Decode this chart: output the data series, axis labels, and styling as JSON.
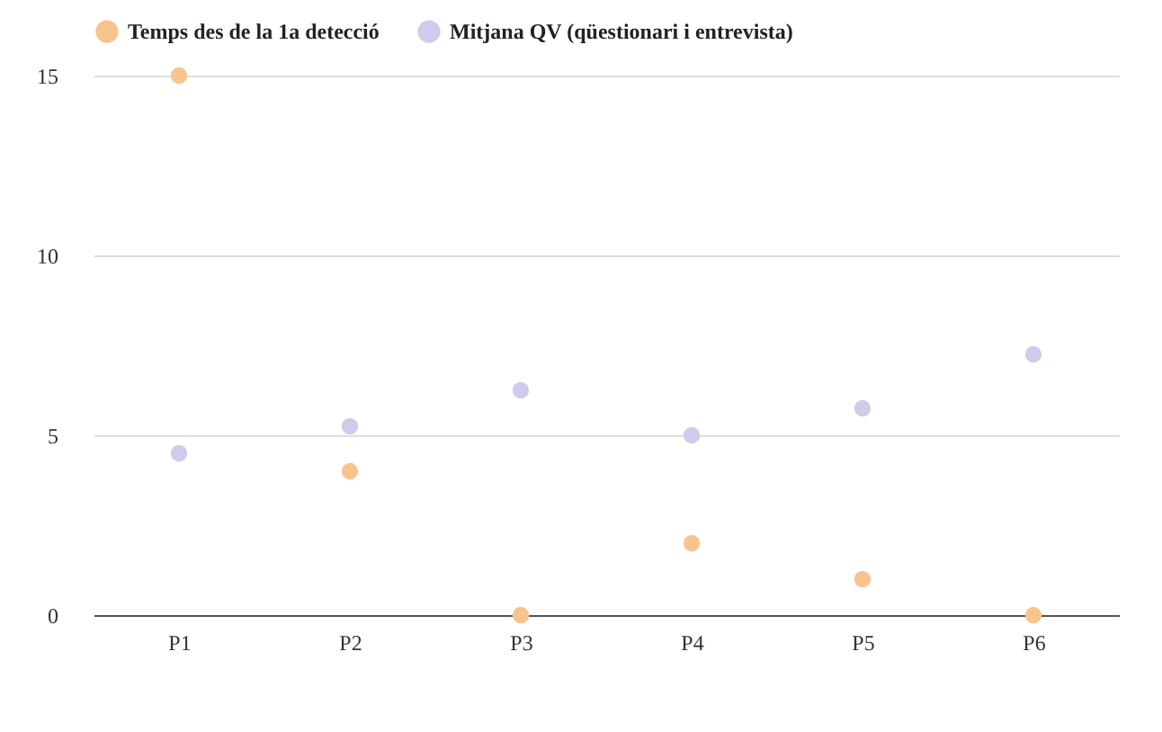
{
  "chart_data": {
    "type": "scatter",
    "categories": [
      "P1",
      "P2",
      "P3",
      "P4",
      "P5",
      "P6"
    ],
    "series": [
      {
        "name": "Temps des de la 1a detecció",
        "color": "#f8c48e",
        "values": [
          15,
          4,
          0,
          2,
          1,
          0
        ]
      },
      {
        "name": "Mitjana QV (qüestionari i entrevista)",
        "color": "#cfcbea",
        "values": [
          4.5,
          5.25,
          6.25,
          5,
          5.75,
          7.25
        ]
      }
    ],
    "ylim": [
      0,
      15
    ],
    "yticks": [
      0,
      5,
      10,
      15
    ],
    "grid": "y",
    "legend": "top",
    "marker": "circle"
  }
}
